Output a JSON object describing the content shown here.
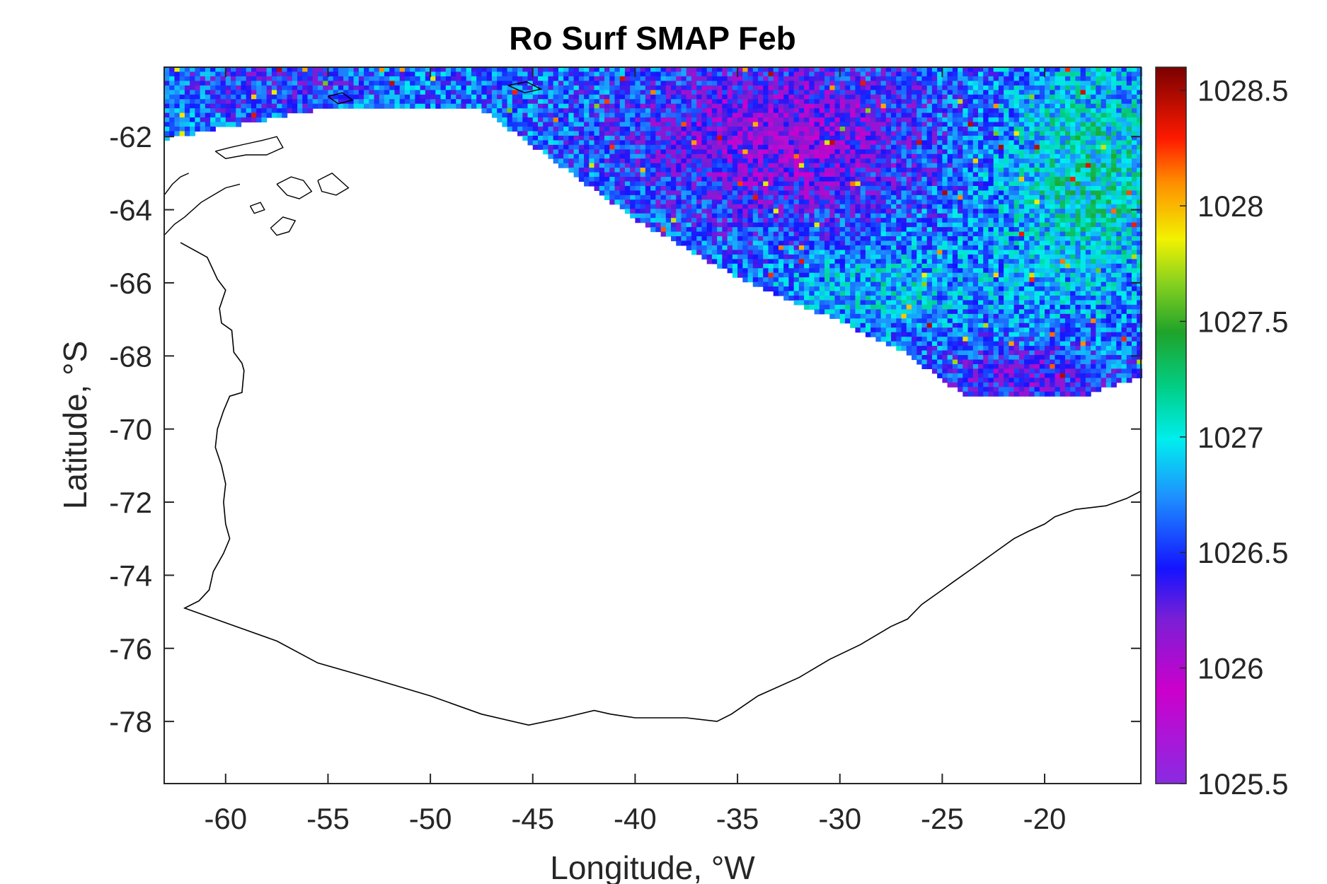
{
  "chart_data": {
    "type": "heatmap",
    "title": "Ro Surf SMAP Feb",
    "xlabel": "Longitude, °W",
    "ylabel": "Latitude, °S",
    "xlim": [
      -63,
      -15.3
    ],
    "ylim": [
      -79.7,
      -60.1
    ],
    "x_ticks": [
      -60,
      -55,
      -50,
      -45,
      -40,
      -35,
      -30,
      -25,
      -20
    ],
    "y_ticks": [
      -62,
      -64,
      -66,
      -68,
      -70,
      -72,
      -74,
      -76,
      -78
    ],
    "x_tick_labels": [
      "-60",
      "-55",
      "-50",
      "-45",
      "-40",
      "-35",
      "-30",
      "-25",
      "-20"
    ],
    "y_tick_labels": [
      "-62",
      "-64",
      "-66",
      "-68",
      "-70",
      "-72",
      "-74",
      "-76",
      "-78"
    ],
    "grid": false,
    "colorbar": {
      "min": 1025.5,
      "max": 1028.6,
      "ticks": [
        1025.5,
        1026,
        1026.5,
        1027,
        1027.5,
        1028,
        1028.5
      ],
      "tick_labels": [
        "1025.5",
        "1026",
        "1026.5",
        "1027",
        "1027.5",
        "1028",
        "1028.5"
      ],
      "colormap": "jet-like (violet → blue → cyan → green → yellow → red → dark red)"
    },
    "cell_size_deg": {
      "lon": 0.25,
      "lat": 0.125
    },
    "data_extent": {
      "lon_range": [
        -63,
        -15.3
      ],
      "lat_range": [
        -69,
        -60.1
      ],
      "southern_boundary_points": [
        {
          "lon": -63,
          "lat": -62
        },
        {
          "lon": -55.5,
          "lat": -61.2
        },
        {
          "lon": -47.5,
          "lat": -61.2
        },
        {
          "lon": -40,
          "lat": -64.2
        },
        {
          "lon": -35,
          "lat": -65.8
        },
        {
          "lon": -30,
          "lat": -67
        },
        {
          "lon": -27,
          "lat": -67.8
        },
        {
          "lon": -24,
          "lat": -69
        },
        {
          "lon": -18,
          "lat": -69
        },
        {
          "lon": -15.3,
          "lat": -68.5
        }
      ]
    },
    "field_description_regions": [
      {
        "region": "central north (-40 to -26 W, -60 to -64 S)",
        "typical_value": 1026.1
      },
      {
        "region": "east (-22 to -15.3 W, -61 to -65 S)",
        "typical_value": 1027.1
      },
      {
        "region": "south-east edge (-25 to -18 W, -68 to -69 S)",
        "typical_value": 1026.2
      },
      {
        "region": "west (-63 to -50 W, -60 to -62 S)",
        "typical_value": 1026.6
      }
    ],
    "coastline": "Antarctic coastline drawn as a thin black line (Antarctic Peninsula in west, Weddell Sea shelf boundary in south)"
  },
  "colors": {
    "axes_line": "#262626",
    "coastline": "#000000",
    "background": "#ffffff"
  }
}
